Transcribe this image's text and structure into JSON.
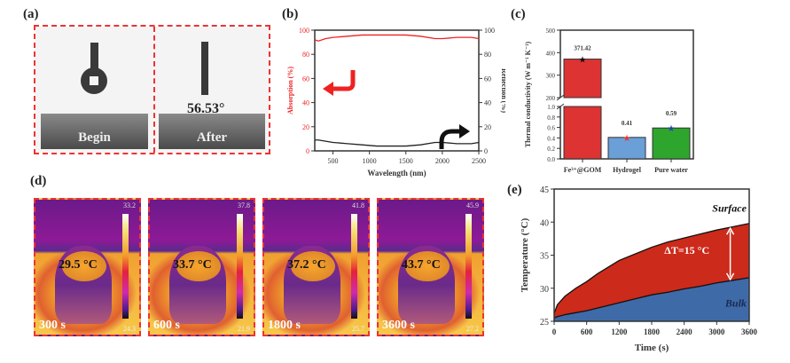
{
  "panel_labels": {
    "a": "(a)",
    "b": "(b)",
    "c": "(c)",
    "d": "(d)",
    "e": "(e)"
  },
  "panel_a": {
    "images": [
      {
        "label": "Begin",
        "annotation": ""
      },
      {
        "label": "After",
        "annotation": "56.53°"
      }
    ],
    "border_color": "#e33333"
  },
  "panel_d": {
    "frames": [
      {
        "time": "300 s",
        "spot_temp": "29.5 °C",
        "scale_max": "33.2",
        "scale_min": "24.3"
      },
      {
        "time": "600 s",
        "spot_temp": "33.7 °C",
        "scale_max": "37.8",
        "scale_min": "21.9"
      },
      {
        "time": "1800 s",
        "spot_temp": "37.2 °C",
        "scale_max": "41.8",
        "scale_min": "25.7"
      },
      {
        "time": "3600 s",
        "spot_temp": "43.7 °C",
        "scale_max": "45.9",
        "scale_min": "27.2"
      }
    ]
  },
  "chart_data": [
    {
      "id": "b",
      "type": "line",
      "title": "",
      "xlabel": "Wavelength (nm)",
      "ylabel": "Absorption (%)",
      "y2label": "Reflection (%)",
      "xlim": [
        250,
        2500
      ],
      "ylim": [
        0,
        100
      ],
      "y2lim": [
        0,
        100
      ],
      "xticks": [
        500,
        1000,
        1500,
        2000,
        2500
      ],
      "yticks": [
        0,
        20,
        40,
        60,
        80,
        100
      ],
      "y2ticks": [
        0,
        20,
        40,
        60,
        80,
        100
      ],
      "x": [
        250,
        300,
        400,
        500,
        700,
        900,
        1100,
        1300,
        1500,
        1700,
        1900,
        2000,
        2200,
        2400,
        2500
      ],
      "series": [
        {
          "name": "Absorption",
          "axis": "left",
          "color": "#ee2222",
          "values": [
            92,
            91,
            93,
            94,
            95,
            96,
            96,
            96,
            96,
            95,
            93,
            93,
            94,
            94,
            93
          ]
        },
        {
          "name": "Reflection",
          "axis": "right",
          "color": "#222222",
          "values": [
            9,
            9,
            8,
            7,
            6,
            5,
            4,
            4,
            4,
            5,
            7,
            7,
            6,
            6,
            7
          ]
        }
      ],
      "annotations": [
        {
          "type": "arrow",
          "direction": "left",
          "color": "#ee2222"
        },
        {
          "type": "arrow",
          "direction": "right",
          "color": "#111111"
        }
      ]
    },
    {
      "id": "c",
      "type": "bar",
      "title": "",
      "xlabel": "",
      "ylabel": "Thermal conductivity (W m⁻¹ K⁻¹)",
      "categories": [
        "Fe³⁺@GOM",
        "Hydrogel",
        "Pure water"
      ],
      "values": [
        371.42,
        0.41,
        0.59
      ],
      "value_labels": [
        "371.42",
        "0.41",
        "0.59"
      ],
      "colors": [
        "#dd3333",
        "#6a9fd8",
        "#2ea62e"
      ],
      "marker_colors": [
        "#111111",
        "#ee3333",
        "#2244aa"
      ],
      "y_broken": true,
      "ylim_lower": [
        0,
        1.0
      ],
      "ylim_upper": [
        200,
        500
      ],
      "yticks_lower": [
        "0.0",
        "0.2",
        "0.4",
        "0.6",
        "0.8",
        "1.0"
      ],
      "yticks_upper": [
        "200",
        "300",
        "400",
        "500"
      ]
    },
    {
      "id": "e",
      "type": "area",
      "title": "",
      "xlabel": "Time (s)",
      "ylabel": "Temperature (°C)",
      "xlim": [
        0,
        3600
      ],
      "ylim": [
        25,
        45
      ],
      "xticks": [
        0,
        600,
        1200,
        1800,
        2400,
        3000,
        3600
      ],
      "yticks": [
        25,
        30,
        35,
        40,
        45
      ],
      "x": [
        0,
        60,
        200,
        400,
        600,
        800,
        1000,
        1200,
        1500,
        1800,
        2100,
        2400,
        2700,
        3000,
        3300,
        3600
      ],
      "series": [
        {
          "name": "Surface",
          "color": "#cc2a1a",
          "values": [
            26.2,
            27.5,
            28.8,
            30.0,
            31.0,
            32.2,
            33.2,
            34.2,
            35.2,
            36.2,
            37.0,
            37.6,
            38.2,
            38.8,
            39.3,
            39.8
          ]
        },
        {
          "name": "Bulk",
          "color": "#3e6aa8",
          "values": [
            25.5,
            25.7,
            26.0,
            26.3,
            26.6,
            27.0,
            27.4,
            27.8,
            28.4,
            29.0,
            29.4,
            29.9,
            30.3,
            30.8,
            31.2,
            31.6
          ]
        }
      ],
      "annotations": [
        {
          "text": "ΔT=15 °C",
          "color": "#ffffff"
        },
        {
          "text": "Surface",
          "style": "italic"
        },
        {
          "text": "Bulk",
          "style": "italic"
        }
      ]
    }
  ]
}
